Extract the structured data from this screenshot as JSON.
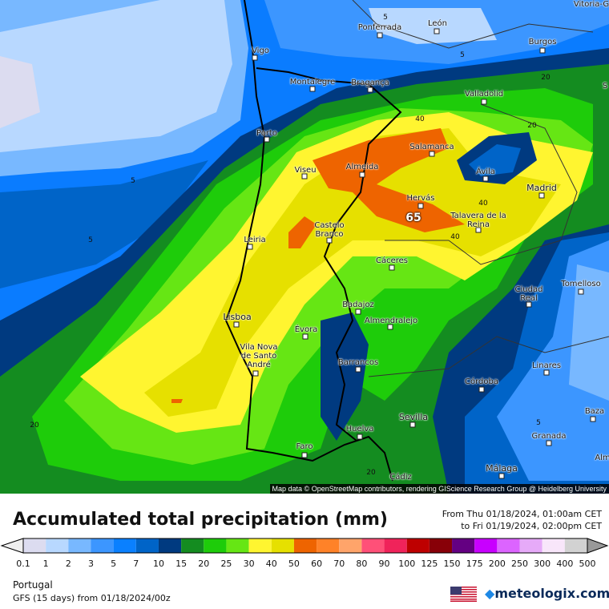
{
  "map": {
    "cities": [
      "Vitoria-G",
      "Ponferrada",
      "León",
      "Vigo",
      "Burgos",
      "Montalegre",
      "Bragança",
      "Valladolid",
      "Porto",
      "Salamanca",
      "Viseu",
      "Almeida",
      "Ávila",
      "Madrid",
      "Hervás",
      "Talavera de la Reina",
      "Castelo Branco",
      "Leiria",
      "Cáceres",
      "Tomelloso",
      "Ciudad Real",
      "Badajoz",
      "Lisboa",
      "Évora",
      "Almendralejo",
      "Vila Nova de Santo André",
      "Barrancos",
      "Linares",
      "Córdoba",
      "Baza",
      "Sevilla",
      "Huelva",
      "Granada",
      "Faro",
      "Málaga",
      "Cádiz",
      "S",
      "Alm"
    ],
    "contour_labels": [
      "5",
      "5",
      "5",
      "5",
      "20",
      "20",
      "40",
      "40",
      "40",
      "20",
      "65",
      "5",
      "20"
    ],
    "max_value_label": "65",
    "attribution": "Map data © OpenStreetMap contributors, rendering GIScience Research Group @ Heidelberg University"
  },
  "legend": {
    "title": "Accumulated total precipitation (mm)",
    "period_from": "From Thu 01/18/2024, 01:00am CET",
    "period_to": "to Fri 01/19/2024, 02:00pm CET",
    "ticks": [
      "0.1",
      "1",
      "2",
      "3",
      "5",
      "7",
      "10",
      "15",
      "20",
      "25",
      "30",
      "40",
      "50",
      "60",
      "70",
      "80",
      "90",
      "100",
      "125",
      "150",
      "175",
      "200",
      "250",
      "300",
      "400",
      "500"
    ],
    "colors": [
      "#dcdcf0",
      "#b8d8ff",
      "#78b8ff",
      "#3c96ff",
      "#0a80ff",
      "#0064c8",
      "#003a80",
      "#148c20",
      "#1ecc0a",
      "#66e614",
      "#fff530",
      "#e6e000",
      "#ee6400",
      "#ff8228",
      "#ffa46a",
      "#ff5078",
      "#f0235a",
      "#be0000",
      "#880008",
      "#640082",
      "#c800ff",
      "#dc64ff",
      "#e6aaf8",
      "#f8e6fa",
      "#d2d2d2"
    ],
    "under_color": "#efefef",
    "over_color": "#999999"
  },
  "footer": {
    "region": "Portugal",
    "model": "GFS (15 days) from  01/18/2024/00z",
    "brand": "meteologix.com"
  }
}
